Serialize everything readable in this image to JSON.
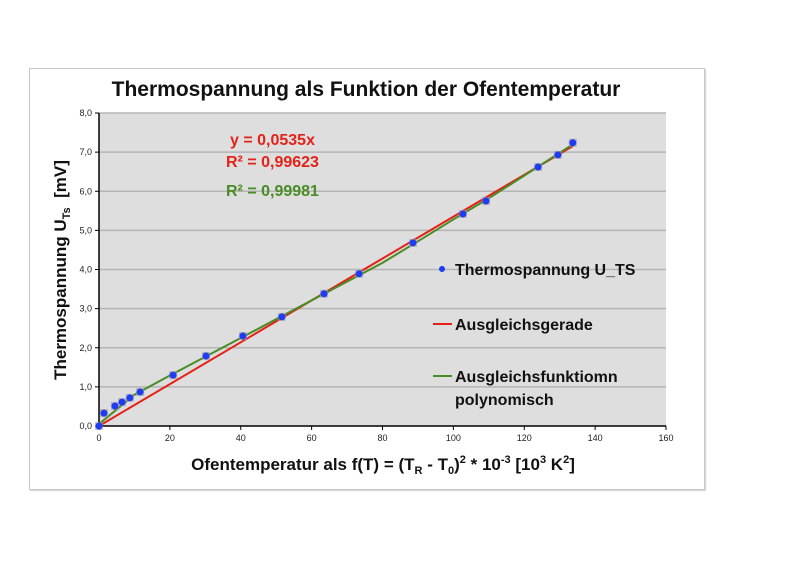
{
  "chart_data": {
    "type": "scatter",
    "title": "Thermospannung als Funktion der Ofentemperatur",
    "xlabel": "Ofentemperatur als f(T) = (T_R - T_0)^2 * 10^-3 [10^3 K^2]",
    "xlabel_parts": {
      "pre": "Ofentemperatur als f(T) = (T",
      "sub1": "R",
      "mid": " - T",
      "sub2": "0",
      "mid2": ")",
      "sup1": "2",
      "mid3": " * 10",
      "sup2": "-3",
      "mid4": " [10",
      "sup3": "3",
      "mid5": " K",
      "sup4": "2",
      "end": "]"
    },
    "ylabel": "Thermospannung U_Ts [mV]",
    "ylabel_parts": {
      "pre": "Thermospannung U",
      "sub": "Ts",
      "post": "  [mV]"
    },
    "xlim": [
      0,
      160
    ],
    "ylim": [
      0,
      8
    ],
    "x_ticks": [
      "0",
      "20",
      "40",
      "60",
      "80",
      "100",
      "120",
      "140",
      "160"
    ],
    "y_ticks": [
      "0,0",
      "1,0",
      "2,0",
      "3,0",
      "4,0",
      "5,0",
      "6,0",
      "7,0",
      "8,0"
    ],
    "grid": "horizontal",
    "legend_position": "right",
    "series": [
      {
        "name": "Thermospannung U_TS",
        "kind": "points",
        "color": "#1f3cf0",
        "x": [
          0,
          1.4,
          4.5,
          6.5,
          8.7,
          11.6,
          20.9,
          30.2,
          40.6,
          51.6,
          63.5,
          73.4,
          88.6,
          102.7,
          109.2,
          123.9,
          129.5,
          133.7
        ],
        "y": [
          0,
          0.33,
          0.51,
          0.61,
          0.72,
          0.87,
          1.3,
          1.79,
          2.3,
          2.79,
          3.38,
          3.89,
          4.68,
          5.42,
          5.75,
          6.62,
          6.93,
          7.24
        ]
      },
      {
        "name": "Ausgleichsgerade",
        "kind": "linear_trendline",
        "color": "#e3221a",
        "equation": "y = 0,0535x",
        "r_squared": "R² = 0,99623",
        "slope": 0.0535,
        "x_range": [
          0,
          133.7
        ]
      },
      {
        "name": "Ausgleichsfunktiomn polynomisch",
        "name_line1": "Ausgleichsfunktiomn",
        "name_line2": "polynomisch",
        "kind": "polynomial_trendline",
        "color": "#4a8c25",
        "r_squared": "R² = 0,99981",
        "x": [
          0,
          10,
          20,
          30,
          40,
          50,
          60,
          70,
          80,
          90,
          100,
          110,
          120,
          133.7
        ],
        "y": [
          0.05,
          0.8,
          1.29,
          1.77,
          2.25,
          2.73,
          3.21,
          3.69,
          4.17,
          4.72,
          5.28,
          5.82,
          6.4,
          7.2
        ]
      }
    ]
  }
}
